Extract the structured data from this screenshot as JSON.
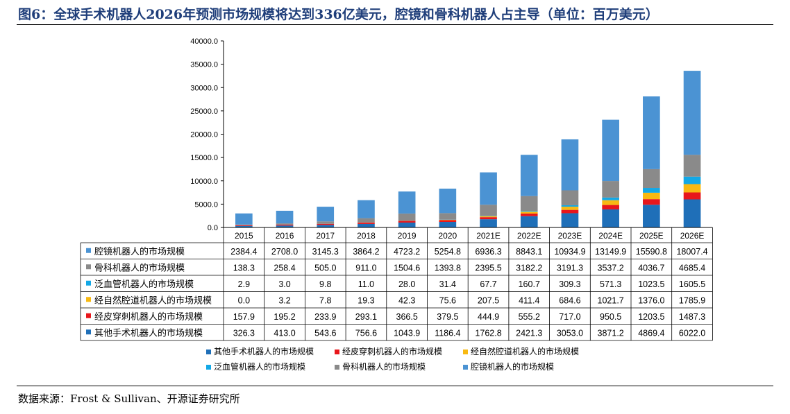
{
  "header": {
    "title": "图6：全球手术机器人2026年预测市场规模将达到336亿美元，腔镜和骨科机器人占主导（单位：百万美元）"
  },
  "footer": {
    "source": "数据来源：Frost & Sullivan、开源证券研究所"
  },
  "chart_data": {
    "type": "bar",
    "stacked": true,
    "categories": [
      "2015",
      "2016",
      "2017",
      "2018",
      "2019",
      "2020",
      "2021E",
      "2022E",
      "2023E",
      "2024E",
      "2025E",
      "2026E"
    ],
    "ylim": [
      0,
      40000
    ],
    "yticks": [
      "40000.0",
      "35000.0",
      "30000.0",
      "25000.0",
      "20000.0",
      "15000.0",
      "10000.0",
      "5000.0",
      "0.0"
    ],
    "ytick_values": [
      40000,
      35000,
      30000,
      25000,
      20000,
      15000,
      10000,
      5000,
      0
    ],
    "series": [
      {
        "name": "其他手术机器人的市场规模",
        "color": "#1f6fb8",
        "values": [
          326.3,
          413.0,
          543.6,
          756.6,
          1043.9,
          1186.4,
          1762.8,
          2421.3,
          3053.0,
          3871.2,
          4869.4,
          6022.0
        ],
        "labels": [
          "326.3",
          "413.0",
          "543.6",
          "756.6",
          "1043.9",
          "1186.4",
          "1762.8",
          "2421.3",
          "3053.0",
          "3871.2",
          "4869.4",
          "6022.0"
        ]
      },
      {
        "name": "经皮穿刺机器人的市场规模",
        "color": "#e8161b",
        "values": [
          157.9,
          195.2,
          233.9,
          293.1,
          366.5,
          379.5,
          444.9,
          555.2,
          717.0,
          950.5,
          1203.5,
          1487.3
        ],
        "labels": [
          "157.9",
          "195.2",
          "233.9",
          "293.1",
          "366.5",
          "379.5",
          "444.9",
          "555.2",
          "717.0",
          "950.5",
          "1203.5",
          "1487.3"
        ]
      },
      {
        "name": "经自然腔道机器人的市场规模",
        "color": "#f8b912",
        "values": [
          0.0,
          3.2,
          7.8,
          19.3,
          42.3,
          75.6,
          207.5,
          411.4,
          684.6,
          1021.7,
          1376.0,
          1785.9
        ],
        "labels": [
          "0.0",
          "3.2",
          "7.8",
          "19.3",
          "42.3",
          "75.6",
          "207.5",
          "411.4",
          "684.6",
          "1021.7",
          "1376.0",
          "1785.9"
        ]
      },
      {
        "name": "泛血管机器人的市场规模",
        "color": "#13a8e6",
        "values": [
          2.9,
          3.0,
          9.8,
          11.0,
          28.0,
          31.4,
          67.7,
          160.7,
          309.3,
          571.3,
          1023.5,
          1605.5
        ],
        "labels": [
          "2.9",
          "3.0",
          "9.8",
          "11.0",
          "28.0",
          "31.4",
          "67.7",
          "160.7",
          "309.3",
          "571.3",
          "1023.5",
          "1605.5"
        ]
      },
      {
        "name": "骨科机器人的市场规模",
        "color": "#8a8a8a",
        "values": [
          138.3,
          258.4,
          505.0,
          911.0,
          1504.6,
          1393.8,
          2395.5,
          3182.2,
          3191.3,
          3537.2,
          4036.7,
          4685.4
        ],
        "labels": [
          "138.3",
          "258.4",
          "505.0",
          "911.0",
          "1504.6",
          "1393.8",
          "2395.5",
          "3182.2",
          "3191.3",
          "3537.2",
          "4036.7",
          "4685.4"
        ]
      },
      {
        "name": "腔镜机器人的市场规模",
        "color": "#4b93d3",
        "values": [
          2384.4,
          2708.0,
          3145.3,
          3864.2,
          4723.2,
          5254.8,
          6936.3,
          8843.1,
          10934.9,
          13149.9,
          15590.8,
          18007.4
        ],
        "labels": [
          "2384.4",
          "2708.0",
          "3145.3",
          "3864.2",
          "4723.2",
          "5254.8",
          "6936.3",
          "8843.1",
          "10934.9",
          "13149.9",
          "15590.8",
          "18007.4"
        ]
      }
    ],
    "table_row_order": [
      5,
      4,
      3,
      2,
      1,
      0
    ],
    "legend_order": [
      0,
      1,
      2,
      3,
      4,
      5
    ],
    "grid": false,
    "legend_position": "bottom"
  }
}
